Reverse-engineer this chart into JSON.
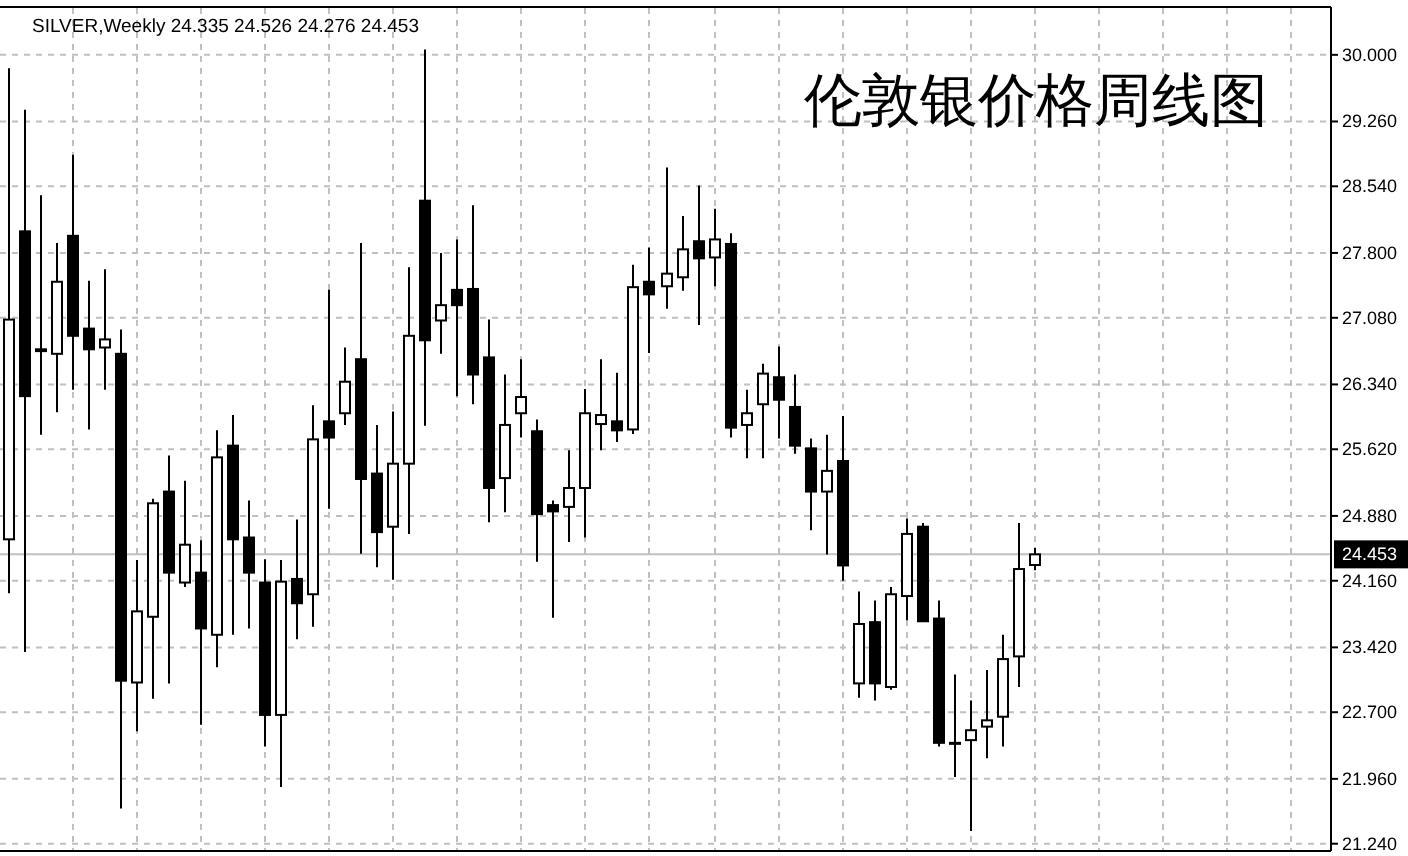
{
  "chart_data": {
    "type": "candlestick",
    "title": "伦敦银价格周线图",
    "subtitle": "SILVER,Weekly 24.335 24.526 24.276 24.453",
    "categories": [
      null,
      null,
      null,
      null,
      null,
      null,
      null,
      null,
      null,
      null,
      null,
      null,
      null,
      null,
      null,
      null,
      null,
      null,
      null,
      null,
      null,
      null,
      null,
      null,
      null,
      null,
      null,
      null,
      null,
      null,
      null,
      null,
      null,
      null,
      null,
      null,
      null,
      null,
      null,
      null,
      null,
      null,
      null,
      null,
      null,
      null,
      null,
      null,
      null,
      null,
      null,
      null,
      null,
      null,
      null,
      null,
      null,
      null,
      null,
      null,
      null,
      null,
      null,
      null,
      null,
      null,
      null,
      null,
      null,
      null,
      null,
      null,
      null,
      null,
      null,
      null,
      null,
      null,
      null,
      null,
      null,
      null,
      null
    ],
    "ohlc": [
      [
        24.62,
        29.85,
        24.02,
        27.06
      ],
      [
        28.04,
        29.39,
        23.37,
        26.21
      ],
      [
        26.73,
        28.44,
        25.78,
        26.71
      ],
      [
        26.68,
        27.91,
        26.03,
        27.48
      ],
      [
        27.99,
        28.89,
        26.28,
        26.88
      ],
      [
        26.96,
        27.49,
        25.84,
        26.73
      ],
      [
        26.75,
        27.62,
        26.28,
        26.84
      ],
      [
        26.68,
        26.95,
        21.63,
        23.05
      ],
      [
        23.03,
        24.39,
        22.49,
        23.82
      ],
      [
        23.76,
        25.07,
        22.85,
        25.02
      ],
      [
        25.15,
        25.55,
        23.02,
        24.25
      ],
      [
        24.14,
        25.27,
        24.09,
        24.56
      ],
      [
        24.25,
        24.61,
        22.56,
        23.63
      ],
      [
        23.56,
        25.83,
        23.2,
        25.53
      ],
      [
        25.66,
        26.0,
        23.56,
        24.62
      ],
      [
        24.64,
        25.05,
        23.63,
        24.25
      ],
      [
        24.14,
        24.4,
        22.32,
        22.67
      ],
      [
        22.67,
        24.39,
        21.87,
        24.15
      ],
      [
        24.18,
        24.84,
        23.51,
        23.91
      ],
      [
        24.01,
        26.11,
        23.65,
        25.73
      ],
      [
        25.93,
        27.39,
        24.96,
        25.75
      ],
      [
        26.02,
        26.75,
        25.89,
        26.37
      ],
      [
        26.62,
        27.91,
        24.46,
        25.29
      ],
      [
        25.35,
        25.89,
        24.31,
        24.7
      ],
      [
        24.76,
        26.04,
        24.17,
        25.46
      ],
      [
        25.46,
        27.64,
        24.68,
        26.88
      ],
      [
        28.38,
        30.06,
        25.88,
        26.83
      ],
      [
        27.05,
        27.8,
        26.68,
        27.22
      ],
      [
        27.39,
        27.95,
        26.21,
        27.22
      ],
      [
        27.4,
        28.33,
        26.12,
        26.45
      ],
      [
        26.64,
        27.06,
        24.81,
        25.19
      ],
      [
        25.3,
        26.45,
        24.92,
        25.89
      ],
      [
        26.02,
        26.62,
        25.75,
        26.2
      ],
      [
        25.82,
        25.95,
        24.37,
        24.9
      ],
      [
        25.0,
        25.05,
        23.75,
        24.93
      ],
      [
        24.98,
        25.61,
        24.59,
        25.19
      ],
      [
        25.19,
        26.29,
        24.64,
        26.02
      ],
      [
        25.9,
        26.62,
        25.61,
        26.0
      ],
      [
        25.93,
        26.47,
        25.7,
        25.83
      ],
      [
        25.84,
        27.67,
        25.79,
        27.42
      ],
      [
        27.48,
        27.86,
        26.69,
        27.34
      ],
      [
        27.43,
        28.75,
        27.18,
        27.57
      ],
      [
        27.53,
        28.21,
        27.38,
        27.84
      ],
      [
        27.93,
        28.55,
        27.0,
        27.74
      ],
      [
        27.75,
        28.29,
        27.43,
        27.95
      ],
      [
        27.9,
        28.02,
        25.75,
        25.86
      ],
      [
        25.89,
        26.28,
        25.52,
        26.02
      ],
      [
        26.12,
        26.57,
        25.52,
        26.46
      ],
      [
        26.42,
        26.76,
        25.74,
        26.17
      ],
      [
        26.09,
        26.45,
        25.57,
        25.66
      ],
      [
        25.63,
        25.74,
        24.72,
        25.15
      ],
      [
        25.15,
        25.78,
        24.45,
        25.38
      ],
      [
        25.49,
        25.99,
        24.16,
        24.33
      ],
      [
        23.02,
        24.04,
        22.86,
        23.68
      ],
      [
        23.7,
        23.94,
        22.83,
        23.02
      ],
      [
        22.98,
        24.09,
        22.95,
        24.01
      ],
      [
        23.99,
        24.85,
        23.72,
        24.68
      ],
      [
        24.76,
        24.8,
        23.71,
        23.71
      ],
      [
        23.74,
        23.94,
        22.32,
        22.36
      ],
      [
        22.36,
        23.12,
        21.98,
        22.35
      ],
      [
        22.39,
        22.83,
        21.38,
        22.5
      ],
      [
        22.54,
        23.17,
        22.19,
        22.61
      ],
      [
        22.65,
        23.56,
        22.32,
        23.29
      ],
      [
        23.32,
        24.8,
        22.98,
        24.29
      ],
      [
        24.335,
        24.526,
        24.276,
        24.453
      ],
      null,
      null,
      null,
      null,
      null,
      null,
      null,
      null,
      null,
      null,
      null,
      null,
      null,
      null,
      null,
      null,
      null,
      null
    ],
    "ylim": [
      21.17,
      30.52
    ],
    "yticks": [
      {
        "value": 30,
        "label": "30.000"
      },
      {
        "value": 29.26,
        "label": "29.260"
      },
      {
        "value": 28.54,
        "label": "28.540"
      },
      {
        "value": 27.8,
        "label": "27.800"
      },
      {
        "value": 27.08,
        "label": "27.080"
      },
      {
        "value": 26.34,
        "label": "26.340"
      },
      {
        "value": 25.62,
        "label": "25.620"
      },
      {
        "value": 24.88,
        "label": "24.880"
      },
      {
        "value": 24.16,
        "label": "24.160"
      },
      {
        "value": 23.42,
        "label": "23.420"
      },
      {
        "value": 22.7,
        "label": "22.700"
      },
      {
        "value": 21.96,
        "label": "21.960"
      },
      {
        "value": 21.24,
        "label": "21.240"
      }
    ],
    "grid": true,
    "tick_labels": "y",
    "ref_lines": [
      {
        "axis": "y",
        "value": 24.453,
        "label": "24.453",
        "color": "#c0c0c0"
      }
    ]
  }
}
